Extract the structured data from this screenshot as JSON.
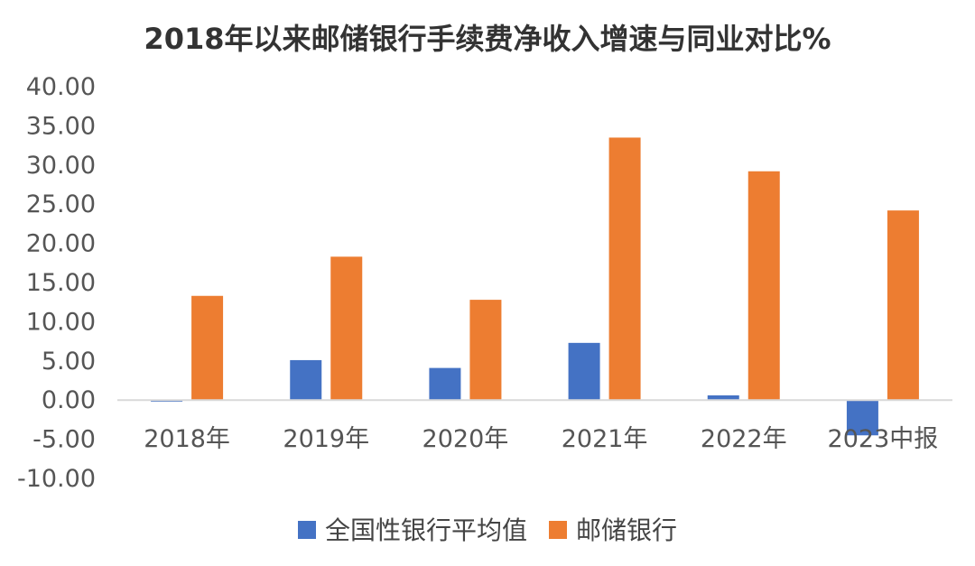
{
  "chart_data": {
    "type": "bar",
    "title": "2018年以来邮储银行手续费净收入增速与同业对比%",
    "xlabel": "",
    "ylabel": "",
    "categories": [
      "2018年",
      "2019年",
      "2020年",
      "2021年",
      "2022年",
      "2023中报"
    ],
    "series": [
      {
        "name": "全国性银行平均值",
        "color": "#4472C4",
        "values": [
          -0.2,
          5.1,
          4.1,
          7.3,
          0.6,
          -4.5
        ]
      },
      {
        "name": "邮储银行",
        "color": "#ED7D31",
        "values": [
          13.3,
          18.3,
          12.8,
          33.5,
          29.2,
          24.2
        ]
      }
    ],
    "ylim": [
      -10,
      40
    ],
    "yticks": [
      40,
      35,
      30,
      25,
      20,
      15,
      10,
      5,
      0,
      -5,
      -10
    ],
    "ytick_labels": [
      "40.00",
      "35.00",
      "30.00",
      "25.00",
      "20.00",
      "15.00",
      "10.00",
      "5.00",
      "0.00",
      "-5.00",
      "-10.00"
    ],
    "grid": false,
    "legend_position": "bottom"
  }
}
